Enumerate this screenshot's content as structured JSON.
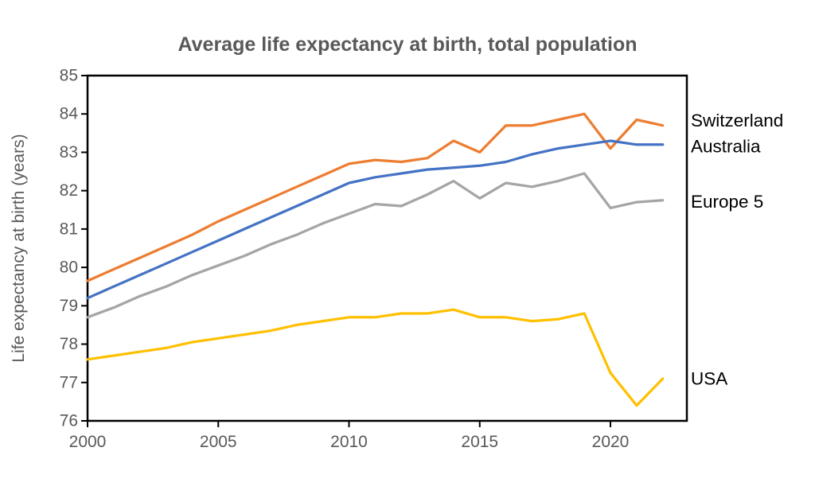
{
  "title": "Average life expectancy at birth, total population",
  "colors": {
    "background": "#ffffff",
    "title_text": "#595959",
    "axis_text": "#595959",
    "axis_line": "#000000",
    "series_label_text": "#000000"
  },
  "chart_data": {
    "type": "line",
    "title": "Average life expectancy at birth, total population",
    "xlabel": "",
    "ylabel": "Life expectancy at birth (years)",
    "xlim": [
      2000,
      2022.9
    ],
    "ylim": [
      76,
      85
    ],
    "grid": false,
    "legend_position": "labels-right-of-plot-at-line-ends",
    "x_ticks": [
      2000,
      2005,
      2010,
      2015,
      2020
    ],
    "y_ticks": [
      76,
      77,
      78,
      79,
      80,
      81,
      82,
      83,
      84,
      85
    ],
    "x": [
      2000,
      2001,
      2002,
      2003,
      2004,
      2005,
      2006,
      2007,
      2008,
      2009,
      2010,
      2011,
      2012,
      2013,
      2014,
      2015,
      2016,
      2017,
      2018,
      2019,
      2020,
      2021,
      2022
    ],
    "series": [
      {
        "name": "Switzerland",
        "color": "#ED7D31",
        "values": [
          79.65,
          79.95,
          80.25,
          80.55,
          80.85,
          81.2,
          81.5,
          81.8,
          82.1,
          82.4,
          82.7,
          82.8,
          82.75,
          82.85,
          83.3,
          83.0,
          83.7,
          83.7,
          83.85,
          84.0,
          83.1,
          83.85,
          83.7
        ]
      },
      {
        "name": "Australia",
        "color": "#4472C4",
        "values": [
          79.2,
          79.5,
          79.8,
          80.1,
          80.4,
          80.7,
          81.0,
          81.3,
          81.6,
          81.9,
          82.2,
          82.35,
          82.45,
          82.55,
          82.6,
          82.65,
          82.75,
          82.95,
          83.1,
          83.2,
          83.3,
          83.2,
          83.2
        ]
      },
      {
        "name": "Europe 5",
        "color": "#A5A5A5",
        "values": [
          78.7,
          78.95,
          79.25,
          79.5,
          79.8,
          80.05,
          80.3,
          80.6,
          80.85,
          81.15,
          81.4,
          81.65,
          81.6,
          81.9,
          82.25,
          81.8,
          82.2,
          82.1,
          82.25,
          82.45,
          81.55,
          81.7,
          81.75
        ]
      },
      {
        "name": "USA",
        "color": "#FFC000",
        "values": [
          77.6,
          77.7,
          77.8,
          77.9,
          78.05,
          78.15,
          78.25,
          78.35,
          78.5,
          78.6,
          78.7,
          78.7,
          78.8,
          78.8,
          78.9,
          78.7,
          78.7,
          78.6,
          78.65,
          78.8,
          77.25,
          76.4,
          77.1
        ]
      }
    ]
  }
}
